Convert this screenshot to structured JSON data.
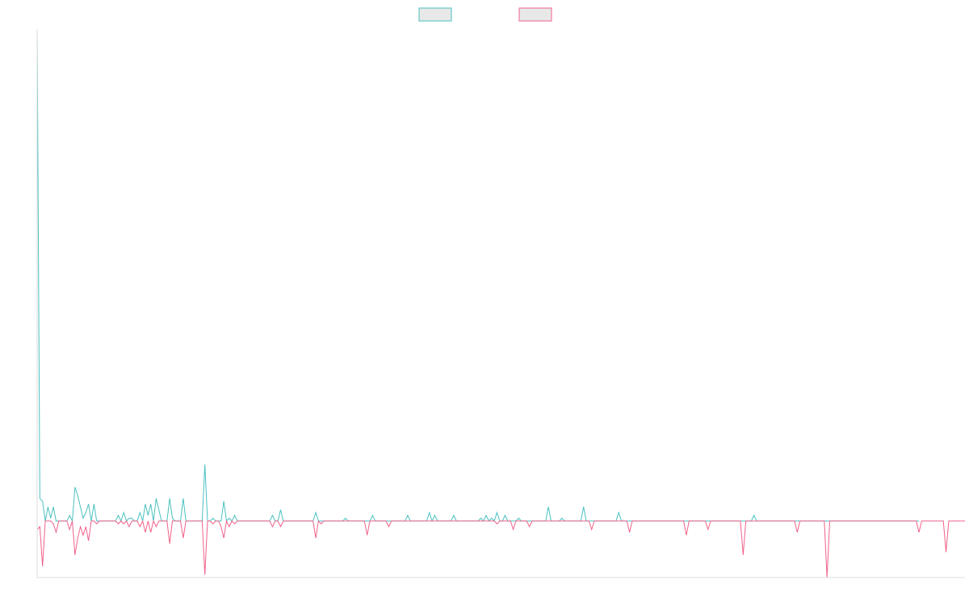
{
  "chart_data": {
    "type": "line",
    "title": "",
    "xlabel": "",
    "ylabel": "",
    "legend": "top-center",
    "grid": false,
    "ylim": [
      -100,
      870
    ],
    "series": [
      {
        "name": "",
        "color": "#4bc0c0",
        "swatch_fill": "#e8e8e8",
        "values": [
          870,
          40,
          35,
          0,
          25,
          5,
          25,
          0,
          0,
          0,
          0,
          0,
          10,
          0,
          60,
          45,
          25,
          5,
          15,
          30,
          0,
          30,
          0,
          0,
          0,
          0,
          0,
          0,
          0,
          0,
          10,
          0,
          15,
          0,
          5,
          5,
          0,
          0,
          15,
          0,
          30,
          10,
          30,
          0,
          40,
          20,
          0,
          0,
          0,
          40,
          5,
          0,
          0,
          0,
          40,
          0,
          0,
          0,
          0,
          0,
          0,
          0,
          100,
          0,
          0,
          5,
          0,
          0,
          0,
          35,
          0,
          5,
          0,
          10,
          0,
          0,
          0,
          0,
          0,
          0,
          0,
          0,
          0,
          0,
          0,
          0,
          0,
          10,
          0,
          0,
          20,
          0,
          0,
          0,
          0,
          0,
          0,
          0,
          0,
          0,
          0,
          0,
          0,
          15,
          0,
          0,
          0,
          0,
          0,
          0,
          0,
          0,
          0,
          0,
          5,
          0,
          0,
          0,
          0,
          0,
          0,
          0,
          0,
          0,
          10,
          0,
          0,
          0,
          0,
          0,
          0,
          0,
          0,
          0,
          0,
          0,
          0,
          10,
          0,
          0,
          0,
          0,
          0,
          0,
          0,
          15,
          0,
          10,
          0,
          0,
          0,
          0,
          0,
          0,
          10,
          0,
          0,
          0,
          0,
          0,
          0,
          0,
          0,
          0,
          5,
          0,
          10,
          0,
          5,
          0,
          15,
          0,
          0,
          10,
          0,
          0,
          0,
          0,
          5,
          0,
          0,
          0,
          0,
          0,
          0,
          0,
          0,
          0,
          0,
          25,
          0,
          0,
          0,
          0,
          5,
          0,
          0,
          0,
          0,
          0,
          0,
          0,
          25,
          0,
          0,
          0,
          0,
          0,
          0,
          0,
          0,
          0,
          0,
          0,
          0,
          15,
          0,
          0,
          0,
          0,
          0,
          0,
          0,
          0,
          0,
          0,
          0,
          0,
          0,
          0,
          0,
          0,
          0,
          0,
          0,
          0,
          0,
          0,
          0,
          0,
          0,
          0,
          0,
          0,
          0,
          0,
          0,
          0,
          0,
          0,
          0,
          0,
          0,
          0,
          0,
          0,
          0,
          0,
          0,
          0,
          0,
          0,
          0,
          0,
          0,
          10,
          0,
          0,
          0,
          0,
          0,
          0,
          0,
          0,
          0,
          0,
          0,
          0,
          0,
          0,
          0,
          0,
          0,
          0,
          0,
          0,
          0,
          0,
          0,
          0,
          0,
          0,
          0,
          0,
          0,
          0,
          0,
          0,
          0,
          0,
          0,
          0,
          0,
          0,
          0,
          0,
          0,
          0,
          0,
          0,
          0,
          0,
          0,
          0,
          0,
          0,
          0,
          0,
          0,
          0,
          0,
          0,
          0,
          0,
          0,
          0,
          0
        ]
      },
      {
        "name": "",
        "color": "#f0628a",
        "swatch_fill": "#e8e8e8",
        "values": [
          -15,
          -10,
          -80,
          0,
          0,
          0,
          -5,
          -20,
          0,
          0,
          0,
          0,
          -15,
          0,
          -60,
          -30,
          -10,
          -25,
          -10,
          -35,
          0,
          0,
          -5,
          0,
          0,
          0,
          0,
          0,
          0,
          0,
          -5,
          0,
          -5,
          0,
          -10,
          0,
          0,
          0,
          -10,
          0,
          -20,
          0,
          -20,
          0,
          -10,
          0,
          0,
          0,
          0,
          -40,
          0,
          0,
          0,
          0,
          -30,
          0,
          0,
          0,
          0,
          0,
          0,
          0,
          -95,
          0,
          0,
          -5,
          0,
          0,
          -10,
          -30,
          0,
          -10,
          0,
          -5,
          0,
          0,
          0,
          0,
          0,
          0,
          0,
          0,
          0,
          0,
          0,
          0,
          0,
          -10,
          0,
          0,
          -10,
          0,
          0,
          0,
          0,
          0,
          0,
          0,
          0,
          0,
          0,
          0,
          0,
          -30,
          0,
          -5,
          0,
          0,
          0,
          0,
          0,
          0,
          0,
          0,
          0,
          0,
          0,
          0,
          0,
          0,
          0,
          0,
          -25,
          0,
          0,
          0,
          0,
          0,
          0,
          0,
          -10,
          0,
          0,
          0,
          0,
          0,
          0,
          0,
          0,
          0,
          0,
          0,
          0,
          0,
          0,
          0,
          0,
          0,
          0,
          0,
          0,
          0,
          0,
          0,
          0,
          0,
          0,
          0,
          0,
          0,
          0,
          0,
          0,
          0,
          0,
          0,
          0,
          0,
          0,
          0,
          -5,
          0,
          0,
          0,
          0,
          0,
          -15,
          0,
          0,
          0,
          0,
          0,
          -10,
          0,
          0,
          0,
          0,
          0,
          0,
          0,
          0,
          0,
          0,
          0,
          0,
          0,
          0,
          0,
          0,
          0,
          0,
          0,
          0,
          0,
          0,
          -15,
          0,
          0,
          0,
          0,
          0,
          0,
          0,
          0,
          0,
          0,
          0,
          0,
          0,
          -20,
          0,
          0,
          0,
          0,
          0,
          0,
          0,
          0,
          0,
          0,
          0,
          0,
          0,
          0,
          0,
          0,
          0,
          0,
          0,
          0,
          -25,
          0,
          0,
          0,
          0,
          0,
          0,
          0,
          -15,
          0,
          0,
          0,
          0,
          0,
          0,
          0,
          0,
          0,
          0,
          0,
          0,
          -60,
          0,
          0,
          0,
          0,
          0,
          0,
          0,
          0,
          0,
          0,
          0,
          0,
          0,
          0,
          0,
          0,
          0,
          0,
          0,
          -20,
          0,
          0,
          0,
          0,
          0,
          0,
          0,
          0,
          0,
          0,
          -100,
          0,
          0,
          0,
          0,
          0,
          0,
          0,
          0,
          0,
          0,
          0,
          0,
          0,
          0,
          0,
          0,
          0,
          0,
          0,
          0,
          0,
          0,
          0,
          0,
          0,
          0,
          0,
          0,
          0,
          0,
          0,
          0,
          0,
          -20,
          0,
          0,
          0,
          0,
          0,
          0,
          0,
          0,
          0,
          -55,
          0,
          0,
          0,
          0,
          0,
          0,
          0
        ]
      }
    ]
  }
}
